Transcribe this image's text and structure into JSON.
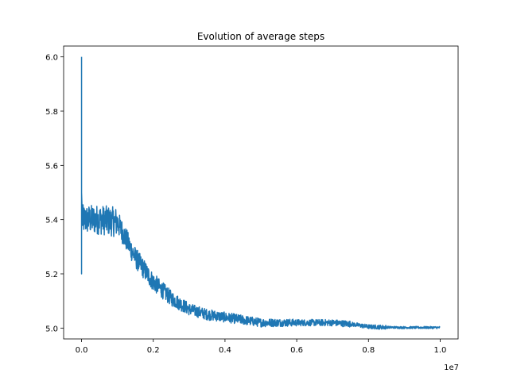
{
  "chart_data": {
    "type": "line",
    "title": "Evolution of average steps",
    "xlabel": "",
    "ylabel": "",
    "x_offset_text": "1e7",
    "xlim": [
      -0.05,
      1.05
    ],
    "ylim": [
      4.96,
      6.04
    ],
    "x_ticks": [
      0.0,
      0.2,
      0.4,
      0.6,
      0.8,
      1.0
    ],
    "x_tick_labels": [
      "0.0",
      "0.2",
      "0.4",
      "0.6",
      "0.8",
      "1.0"
    ],
    "y_ticks": [
      5.0,
      5.2,
      5.4,
      5.6,
      5.8,
      6.0
    ],
    "y_tick_labels": [
      "5.0",
      "5.2",
      "5.4",
      "5.6",
      "5.8",
      "6.0"
    ],
    "grid": false,
    "line_color": "#1f77b4",
    "series": [
      {
        "x": [
          0.0,
          0.0,
          0.0,
          0.005,
          0.05,
          0.1,
          0.15,
          0.2,
          0.25,
          0.3,
          0.35,
          0.4,
          0.45,
          0.5,
          0.55,
          0.6,
          0.65,
          0.7,
          0.75,
          0.8,
          0.85,
          0.9,
          0.95,
          1.0
        ],
        "y": [
          6.0,
          5.2,
          5.4,
          5.4,
          5.4,
          5.39,
          5.26,
          5.17,
          5.11,
          5.07,
          5.05,
          5.04,
          5.03,
          5.02,
          5.02,
          5.02,
          5.02,
          5.02,
          5.015,
          5.005,
          5.003,
          5.002,
          5.002,
          5.002
        ]
      }
    ]
  }
}
